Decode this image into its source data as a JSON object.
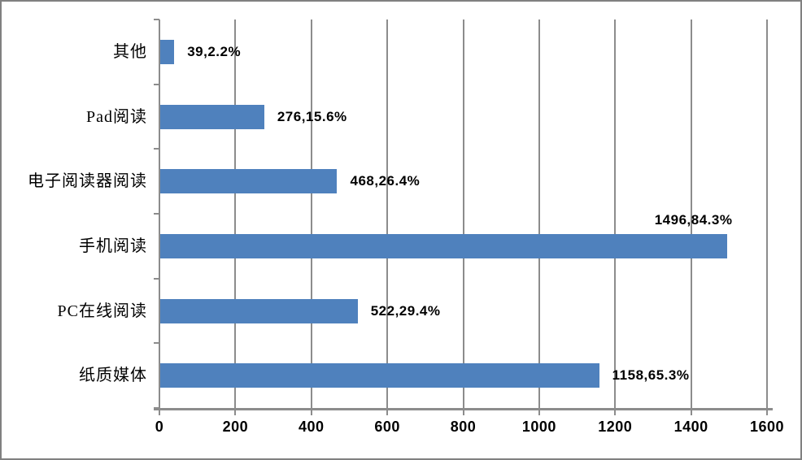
{
  "chart_data": {
    "type": "bar",
    "orientation": "horizontal",
    "title": "",
    "xlabel": "",
    "ylabel": "",
    "categories": [
      "其他",
      "Pad阅读",
      "电子阅读器阅读",
      "手机阅读",
      "PC在线阅读",
      "纸质媒体"
    ],
    "values": [
      39,
      276,
      468,
      1496,
      522,
      1158
    ],
    "percentages": [
      2.2,
      15.6,
      26.4,
      84.3,
      29.4,
      65.3
    ],
    "data_labels": [
      "39,2.2%",
      "276,15.6%",
      "468,26.4%",
      "1496,84.3%",
      "522,29.4%",
      "1158,65.3%"
    ],
    "data_label_placement": [
      "right",
      "right",
      "right",
      "above",
      "right",
      "right"
    ],
    "xlim": [
      0,
      1600
    ],
    "x_ticks": [
      "0",
      "200",
      "400",
      "600",
      "800",
      "1000",
      "1200",
      "1400",
      "1600"
    ],
    "grid": true,
    "legend": false,
    "colors": {
      "bar": "#4f81bd",
      "gridline": "#8c8c8c",
      "axis": "#8c8c8c",
      "text": "#000000",
      "frame_border": "#808080",
      "background": "#ffffff"
    }
  }
}
